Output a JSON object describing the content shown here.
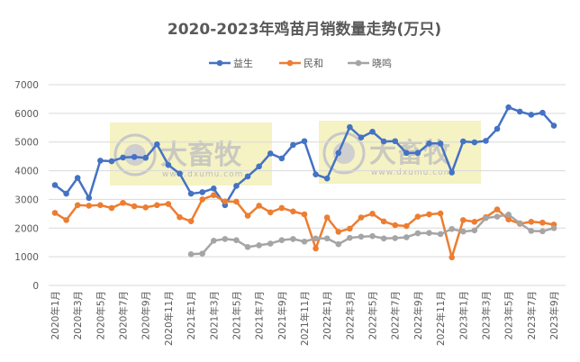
{
  "chart_data": {
    "type": "line",
    "title": "2020-2023年鸡苗月销数量走势(万只)",
    "xlabel": "",
    "ylabel": "",
    "ylim": [
      0,
      7000
    ],
    "yticks": [
      "0",
      "1000",
      "2000",
      "3000",
      "4000",
      "5000",
      "6000",
      "7000"
    ],
    "grid": true,
    "legend_position": "top",
    "categories": [
      "2020年1月",
      "2020年2月",
      "2020年3月",
      "2020年4月",
      "2020年5月",
      "2020年6月",
      "2020年7月",
      "2020年8月",
      "2020年9月",
      "2020年10月",
      "2020年11月",
      "2020年12月",
      "2021年1月",
      "2021年2月",
      "2021年3月",
      "2021年4月",
      "2021年5月",
      "2021年6月",
      "2021年7月",
      "2021年8月",
      "2021年9月",
      "2021年10月",
      "2021年11月",
      "2021年12月",
      "2022年1月",
      "2022年2月",
      "2022年3月",
      "2022年4月",
      "2022年5月",
      "2022年6月",
      "2022年7月",
      "2022年8月",
      "2022年9月",
      "2022年10月",
      "2022年11月",
      "2022年12月",
      "2023年1月",
      "2023年2月",
      "2023年3月",
      "2023年4月",
      "2023年5月",
      "2023年6月",
      "2023年7月",
      "2023年8月",
      "2023年9月"
    ],
    "series": [
      {
        "name": "益生",
        "color": "#4472c4",
        "values": [
          3500,
          3200,
          3750,
          3050,
          4350,
          4330,
          4460,
          4480,
          4450,
          4920,
          4200,
          3900,
          3200,
          3250,
          3380,
          2800,
          3470,
          3800,
          4150,
          4600,
          4430,
          4900,
          5030,
          3870,
          3730,
          4620,
          5520,
          5160,
          5360,
          5020,
          5030,
          4620,
          4620,
          4950,
          4950,
          3940,
          5020,
          4990,
          5040,
          5460,
          6210,
          6060,
          5950,
          6020,
          5570
        ]
      },
      {
        "name": "民和",
        "color": "#ed7d31",
        "values": [
          2530,
          2280,
          2800,
          2780,
          2800,
          2700,
          2880,
          2760,
          2720,
          2800,
          2840,
          2380,
          2240,
          3000,
          3150,
          2930,
          2920,
          2430,
          2780,
          2550,
          2700,
          2580,
          2480,
          1290,
          2370,
          1870,
          1980,
          2370,
          2500,
          2230,
          2100,
          2070,
          2400,
          2480,
          2510,
          980,
          2280,
          2220,
          2380,
          2650,
          2300,
          2150,
          2220,
          2190,
          2120
        ]
      },
      {
        "name": "晓鸣",
        "color": "#a5a5a5",
        "values": [
          null,
          null,
          null,
          null,
          null,
          null,
          null,
          null,
          null,
          null,
          null,
          null,
          1090,
          1110,
          1560,
          1620,
          1580,
          1340,
          1400,
          1460,
          1580,
          1620,
          1530,
          1640,
          1640,
          1440,
          1660,
          1700,
          1720,
          1640,
          1650,
          1680,
          1820,
          1830,
          1790,
          1970,
          1880,
          1920,
          2350,
          2400,
          2470,
          2170,
          1900,
          1890,
          2000
        ]
      }
    ]
  },
  "watermark": {
    "brand": "大畜牧",
    "url": "www.dxumu.com"
  }
}
